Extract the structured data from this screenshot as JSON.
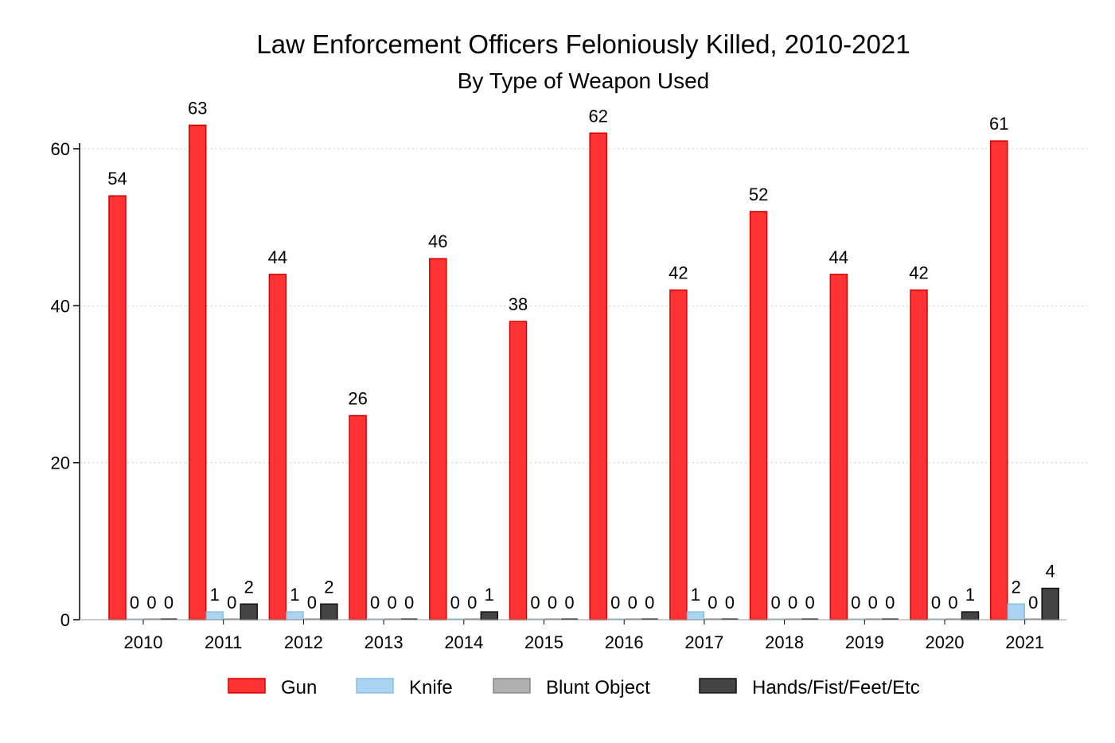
{
  "chart_data": {
    "type": "bar",
    "title": "Law Enforcement Officers Feloniously Killed, 2010-2021",
    "subtitle": "By Type of Weapon Used",
    "xlabel": "",
    "ylabel": "",
    "ylim": [
      0,
      60
    ],
    "yticks": [
      0,
      20,
      40,
      60
    ],
    "grid": true,
    "legend_position": "bottom",
    "categories": [
      "2010",
      "2011",
      "2012",
      "2013",
      "2014",
      "2015",
      "2016",
      "2017",
      "2018",
      "2019",
      "2020",
      "2021"
    ],
    "series": [
      {
        "name": "Gun",
        "color": "#ff3333",
        "stroke": "#d40000",
        "values": [
          54,
          63,
          44,
          26,
          46,
          38,
          62,
          42,
          52,
          44,
          42,
          61
        ]
      },
      {
        "name": "Knife",
        "color": "#aad4f2",
        "stroke": "#8cbde0",
        "values": [
          0,
          1,
          1,
          0,
          0,
          0,
          0,
          1,
          0,
          0,
          0,
          2
        ]
      },
      {
        "name": "Blunt Object",
        "color": "#b0b0b0",
        "stroke": "#888888",
        "values": [
          0,
          0,
          0,
          0,
          0,
          0,
          0,
          0,
          0,
          0,
          0,
          0
        ]
      },
      {
        "name": "Hands/Fist/Feet/Etc",
        "color": "#444444",
        "stroke": "#111111",
        "values": [
          0,
          2,
          2,
          0,
          1,
          0,
          0,
          0,
          0,
          0,
          1,
          4
        ]
      }
    ]
  }
}
